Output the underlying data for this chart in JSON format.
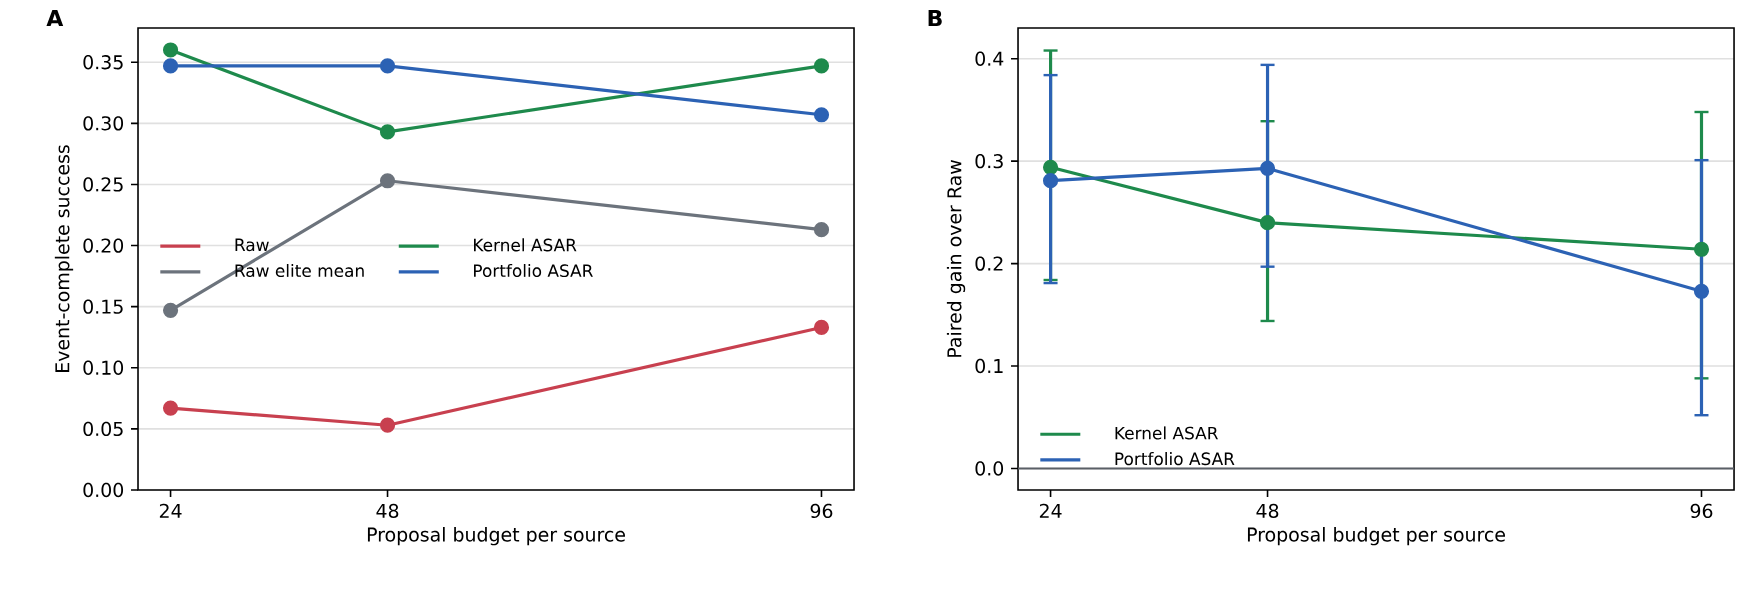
{
  "chart_data": [
    {
      "type": "line",
      "title": "A",
      "xlabel": "Proposal budget per source",
      "ylabel": "Event-complete success",
      "x": [
        24,
        48,
        96
      ],
      "xlim": [
        20.4,
        99.6
      ],
      "xticks": [
        24,
        48,
        96
      ],
      "ylim": [
        0,
        0.378
      ],
      "yticks": [
        {
          "value": 0,
          "label": "0.00"
        },
        {
          "value": 0.05,
          "label": "0.05"
        },
        {
          "value": 0.1,
          "label": "0.10"
        },
        {
          "value": 0.15,
          "label": "0.15"
        },
        {
          "value": 0.2,
          "label": "0.20"
        },
        {
          "value": 0.25,
          "label": "0.25"
        },
        {
          "value": 0.3,
          "label": "0.30"
        },
        {
          "value": 0.35,
          "label": "0.35"
        }
      ],
      "grid": "y",
      "legend": "left",
      "marker": "circle",
      "line_style": "solid",
      "series": [
        {
          "name": "Raw",
          "color": "#c8404f",
          "values": [
            0.067,
            0.053,
            0.133
          ]
        },
        {
          "name": "Raw elite mean",
          "color": "#6c737c",
          "values": [
            0.147,
            0.253,
            0.213
          ]
        },
        {
          "name": "Kernel ASAR",
          "color": "#1e8a4c",
          "values": [
            0.36,
            0.293,
            0.347
          ]
        },
        {
          "name": "Portfolio ASAR",
          "color": "#2c62b4",
          "values": [
            0.347,
            0.347,
            0.307
          ]
        }
      ]
    },
    {
      "type": "line",
      "title": "B",
      "xlabel": "Proposal budget per source",
      "ylabel": "Paired gain over Raw",
      "x": [
        24,
        48,
        96
      ],
      "xlim": [
        20.4,
        99.6
      ],
      "xticks": [
        24,
        48,
        96
      ],
      "ylim": [
        -0.021,
        0.43
      ],
      "yticks": [
        {
          "value": 0,
          "label": "0.0"
        },
        {
          "value": 0.1,
          "label": "0.1"
        },
        {
          "value": 0.2,
          "label": "0.2"
        },
        {
          "value": 0.3,
          "label": "0.3"
        },
        {
          "value": 0.4,
          "label": "0.4"
        }
      ],
      "grid": "y",
      "legend": "bottom left",
      "marker": "circle",
      "line_style": "solid",
      "ref_lines": [
        {
          "axis": "y",
          "value": 0,
          "color": "#5a5f66"
        }
      ],
      "series": [
        {
          "name": "Kernel ASAR",
          "color": "#1e8a4c",
          "values": [
            0.294,
            0.24,
            0.214
          ],
          "errors": [
            [
              0.184,
              0.408
            ],
            [
              0.144,
              0.339
            ],
            [
              0.088,
              0.348
            ]
          ]
        },
        {
          "name": "Portfolio ASAR",
          "color": "#2c62b4",
          "values": [
            0.281,
            0.293,
            0.173
          ],
          "errors": [
            [
              0.181,
              0.384
            ],
            [
              0.197,
              0.394
            ],
            [
              0.052,
              0.301
            ]
          ]
        }
      ]
    }
  ]
}
